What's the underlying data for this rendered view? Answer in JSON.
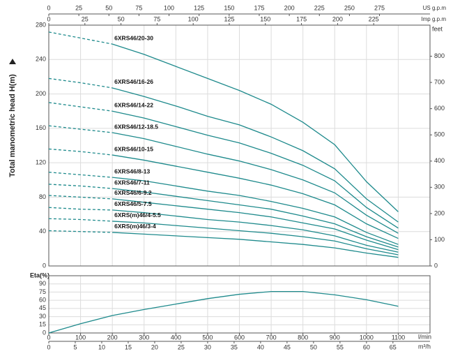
{
  "chart_data": [
    {
      "type": "line",
      "y_label": "Total manometric head H(m)",
      "x": [
        0,
        100,
        200,
        300,
        400,
        500,
        600,
        700,
        800,
        900,
        1000,
        1100
      ],
      "solid_from_x": 200,
      "ylim": [
        0,
        280
      ],
      "yticks": [
        0,
        40,
        80,
        120,
        160,
        200,
        240,
        280
      ],
      "y2lim": [
        0,
        918.6
      ],
      "y2ticks": [
        0,
        100,
        200,
        300,
        400,
        500,
        600,
        700,
        800
      ],
      "y2_label": "feet",
      "top_axes": [
        {
          "label": "US g.p.m",
          "lim": [
            0,
            317
          ],
          "ticks": [
            0,
            25,
            50,
            75,
            100,
            125,
            150,
            175,
            200,
            225,
            250,
            275
          ]
        },
        {
          "label": "Imp g.p.m",
          "lim": [
            0,
            264
          ],
          "ticks": [
            0,
            25,
            50,
            75,
            100,
            125,
            150,
            175,
            200,
            225
          ]
        }
      ],
      "grid": true,
      "series": [
        {
          "name": "6XRS46/20-30",
          "color": "#1e8a8c",
          "values": [
            272,
            265,
            258,
            246,
            232,
            218,
            204,
            188,
            167,
            141,
            98,
            63
          ]
        },
        {
          "name": "6XRS46/16-26",
          "color": "#1e8a8c",
          "values": [
            218,
            213,
            207,
            197,
            186,
            174,
            164,
            150,
            134,
            113,
            78,
            51
          ]
        },
        {
          "name": "6XRS46/14-22",
          "color": "#1e8a8c",
          "values": [
            190,
            185,
            180,
            172,
            162,
            152,
            143,
            131,
            117,
            99,
            68,
            44
          ]
        },
        {
          "name": "6XRS46/12-18.5",
          "color": "#1e8a8c",
          "values": [
            163,
            159,
            155,
            148,
            139,
            130,
            122,
            112,
            100,
            85,
            59,
            38
          ]
        },
        {
          "name": "6XRS46/10-15",
          "color": "#1e8a8c",
          "values": [
            136,
            133,
            129,
            123,
            116,
            109,
            102,
            94,
            84,
            71,
            49,
            32
          ]
        },
        {
          "name": "6XRS46/8-13",
          "color": "#1e8a8c",
          "values": [
            109,
            106,
            103,
            99,
            93,
            87,
            82,
            75,
            67,
            57,
            39,
            25
          ]
        },
        {
          "name": "6XRS46/7-11",
          "color": "#1e8a8c",
          "values": [
            95,
            93,
            90,
            86,
            81,
            76,
            71,
            66,
            58,
            49,
            34,
            22
          ]
        },
        {
          "name": "6XRS46/6-9.2",
          "color": "#1e8a8c",
          "values": [
            82,
            80,
            78,
            74,
            70,
            66,
            62,
            57,
            50,
            43,
            30,
            19
          ]
        },
        {
          "name": "6XRS46/5-7.5",
          "color": "#1e8a8c",
          "values": [
            68,
            66,
            65,
            62,
            58,
            54,
            51,
            47,
            42,
            35,
            24,
            16
          ]
        },
        {
          "name": "6XRS(m)46/4-5.5",
          "color": "#1e8a8c",
          "values": [
            55,
            54,
            52,
            50,
            47,
            44,
            41,
            38,
            34,
            29,
            20,
            13
          ]
        },
        {
          "name": "6XRS(m)46/3-4",
          "color": "#1e8a8c",
          "values": [
            41,
            40,
            39,
            37,
            35,
            33,
            31,
            28,
            25,
            21,
            15,
            10
          ]
        }
      ]
    },
    {
      "type": "line",
      "y_label": "Eta(%)",
      "x": [
        0,
        100,
        200,
        300,
        400,
        500,
        600,
        700,
        800,
        900,
        1000,
        1100
      ],
      "values": [
        0,
        17,
        32,
        43,
        53,
        63,
        71,
        76,
        76,
        70,
        61,
        49
      ],
      "color": "#1e8a8c",
      "ylim": [
        0,
        105
      ],
      "yticks": [
        0,
        15,
        30,
        45,
        60,
        75,
        90
      ],
      "xlim": [
        0,
        1200
      ],
      "xticks": [
        0,
        100,
        200,
        300,
        400,
        500,
        600,
        700,
        800,
        900,
        1000,
        1100
      ],
      "x_label": "l/min",
      "x2lim": [
        0,
        72
      ],
      "x2ticks": [
        0,
        5,
        10,
        15,
        20,
        25,
        30,
        35,
        40,
        45,
        50,
        55,
        60,
        65
      ],
      "x2_label": "m³/h",
      "grid": true
    }
  ]
}
